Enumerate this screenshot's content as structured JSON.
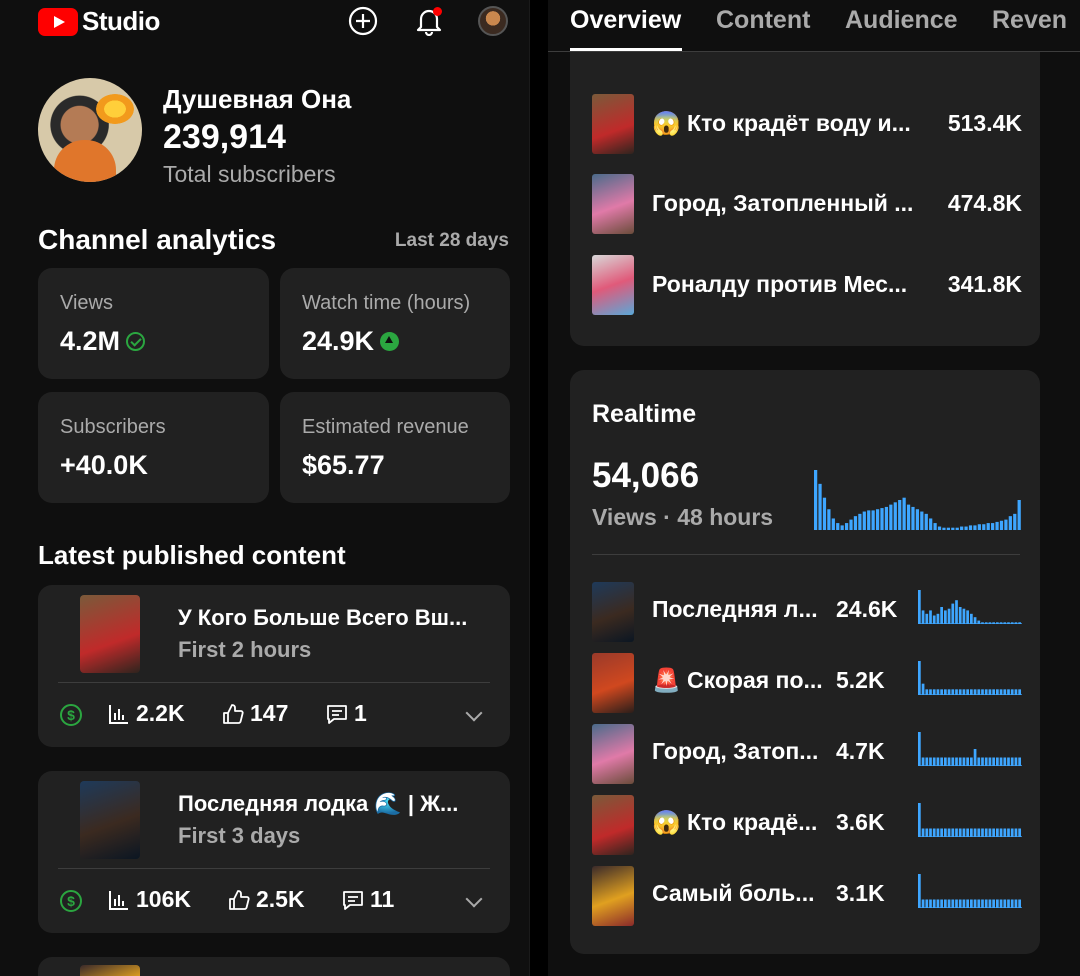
{
  "app": {
    "logo_text": "Studio"
  },
  "channel": {
    "name": "Душевная Она",
    "subscribers": "239,914",
    "subscribers_label": "Total subscribers"
  },
  "analytics": {
    "title": "Channel analytics",
    "range": "Last 28 days",
    "metrics": [
      {
        "label": "Views",
        "value": "4.2M",
        "indicator": "check-icon"
      },
      {
        "label": "Watch time (hours)",
        "value": "24.9K",
        "indicator": "up-arrow-icon"
      },
      {
        "label": "Subscribers",
        "value": "+40.0K"
      },
      {
        "label": "Estimated revenue",
        "value": "$65.77"
      }
    ]
  },
  "latest": {
    "title": "Latest published content",
    "items": [
      {
        "title": "У Кого Больше Всего Вш...",
        "sub": "First 2 hours",
        "views": "2.2K",
        "likes": "147",
        "comments": "1"
      },
      {
        "title": "Последняя лодка 🌊 | Ж...",
        "sub": "First 3 days",
        "views": "106K",
        "likes": "2.5K",
        "comments": "11"
      }
    ]
  },
  "tabs": [
    "Overview",
    "Content",
    "Audience",
    "Reven"
  ],
  "top_videos": [
    {
      "title": "😱 Кто крадёт воду и...",
      "value": "513.4K"
    },
    {
      "title": "Город, Затопленный ...",
      "value": "474.8K"
    },
    {
      "title": "Роналду против Мес...",
      "value": "341.8K"
    }
  ],
  "realtime": {
    "title": "Realtime",
    "views": "54,066",
    "sub": "Views · 48 hours",
    "accent": "#3ea6ff",
    "chart_bars": [
      52,
      40,
      28,
      18,
      10,
      6,
      4,
      6,
      9,
      12,
      14,
      16,
      17,
      17,
      18,
      19,
      20,
      22,
      24,
      26,
      28,
      22,
      20,
      18,
      16,
      14,
      10,
      6,
      3,
      2,
      2,
      2,
      2,
      3,
      3,
      4,
      4,
      5,
      5,
      6,
      6,
      7,
      8,
      9,
      12,
      14,
      26
    ],
    "items": [
      {
        "title": "Последняя л...",
        "value": "24.6K",
        "spark": [
          20,
          8,
          6,
          8,
          5,
          6,
          10,
          8,
          9,
          12,
          14,
          10,
          9,
          8,
          6,
          4,
          2,
          1,
          1,
          1,
          1,
          1,
          1,
          1,
          1,
          1,
          1,
          1
        ]
      },
      {
        "title": "🚨 Скорая по...",
        "value": "5.2K",
        "spark": [
          6,
          2,
          1,
          1,
          1,
          1,
          1,
          1,
          1,
          1,
          1,
          1,
          1,
          1,
          1,
          1,
          1,
          1,
          1,
          1,
          1,
          1,
          1,
          1,
          1,
          1,
          1,
          1
        ]
      },
      {
        "title": "Город, Затоп...",
        "value": "4.7K",
        "spark": [
          4,
          1,
          1,
          1,
          1,
          1,
          1,
          1,
          1,
          1,
          1,
          1,
          1,
          1,
          1,
          2,
          1,
          1,
          1,
          1,
          1,
          1,
          1,
          1,
          1,
          1,
          1,
          1
        ]
      },
      {
        "title": "😱 Кто крадё...",
        "value": "3.6K",
        "spark": [
          4,
          1,
          1,
          1,
          1,
          1,
          1,
          1,
          1,
          1,
          1,
          1,
          1,
          1,
          1,
          1,
          1,
          1,
          1,
          1,
          1,
          1,
          1,
          1,
          1,
          1,
          1,
          1
        ]
      },
      {
        "title": "Самый боль...",
        "value": "3.1K",
        "spark": [
          4,
          1,
          1,
          1,
          1,
          1,
          1,
          1,
          1,
          1,
          1,
          1,
          1,
          1,
          1,
          1,
          1,
          1,
          1,
          1,
          1,
          1,
          1,
          1,
          1,
          1,
          1,
          1
        ]
      }
    ]
  }
}
